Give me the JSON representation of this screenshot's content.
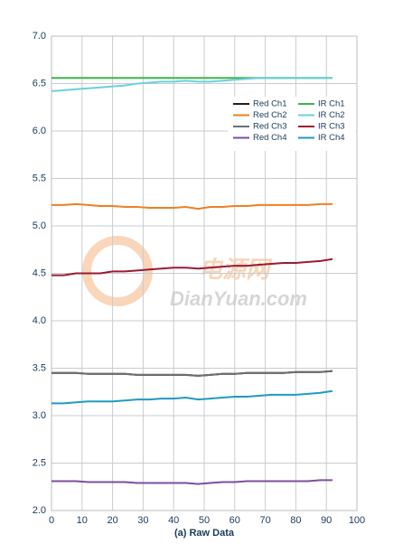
{
  "chart_data": {
    "type": "line",
    "x_label": "(a) Raw Data",
    "x": [
      0,
      4,
      8,
      12,
      16,
      20,
      24,
      28,
      32,
      36,
      40,
      44,
      48,
      52,
      56,
      60,
      64,
      68,
      72,
      76,
      80,
      84,
      88,
      92
    ],
    "xlim": [
      0,
      100
    ],
    "xticks": [
      0,
      10,
      20,
      30,
      40,
      50,
      60,
      70,
      80,
      90,
      100
    ],
    "ylim": [
      2,
      7
    ],
    "yticks": [
      {
        "value": 2,
        "label": "2.0"
      },
      2.5,
      {
        "value": 3,
        "label": "3.0"
      },
      3.5,
      {
        "value": 4,
        "label": "4.0"
      },
      4.5,
      {
        "value": 5,
        "label": "5.0"
      },
      5.5,
      {
        "value": 6,
        "label": "6.0"
      },
      6.5,
      {
        "value": 7,
        "label": "7.0"
      }
    ],
    "grid": true,
    "legend_position": "upper right",
    "series": [
      {
        "name": "Red Ch1",
        "color": "#231f20",
        "values": [
          3.45,
          3.45,
          3.45,
          3.44,
          3.44,
          3.44,
          3.44,
          3.43,
          3.43,
          3.43,
          3.43,
          3.43,
          3.42,
          3.43,
          3.44,
          3.44,
          3.45,
          3.45,
          3.45,
          3.45,
          3.46,
          3.46,
          3.46,
          3.47
        ]
      },
      {
        "name": "Red Ch2",
        "color": "#f07f22",
        "values": [
          5.22,
          5.22,
          5.23,
          5.22,
          5.21,
          5.21,
          5.2,
          5.2,
          5.19,
          5.19,
          5.19,
          5.2,
          5.18,
          5.2,
          5.2,
          5.21,
          5.21,
          5.22,
          5.22,
          5.22,
          5.22,
          5.22,
          5.23,
          5.23
        ]
      },
      {
        "name": "Red Ch3",
        "color": "#6d6e70",
        "values": [
          3.45,
          3.45,
          3.45,
          3.44,
          3.44,
          3.44,
          3.44,
          3.43,
          3.43,
          3.43,
          3.43,
          3.43,
          3.42,
          3.43,
          3.44,
          3.44,
          3.45,
          3.45,
          3.45,
          3.45,
          3.46,
          3.46,
          3.46,
          3.47
        ]
      },
      {
        "name": "Red Ch4",
        "color": "#7b4f9d",
        "values": [
          2.31,
          2.31,
          2.31,
          2.3,
          2.3,
          2.3,
          2.3,
          2.29,
          2.29,
          2.29,
          2.29,
          2.29,
          2.28,
          2.29,
          2.3,
          2.3,
          2.31,
          2.31,
          2.31,
          2.31,
          2.31,
          2.31,
          2.32,
          2.32
        ]
      },
      {
        "name": "IR Ch1",
        "color": "#3db54a",
        "values": [
          6.56,
          6.56,
          6.56,
          6.56,
          6.56,
          6.56,
          6.56,
          6.56,
          6.56,
          6.56,
          6.56,
          6.56,
          6.56,
          6.56,
          6.56,
          6.56,
          6.56,
          6.56,
          6.56,
          6.56,
          6.56,
          6.56,
          6.56,
          6.56
        ]
      },
      {
        "name": "IR Ch2",
        "color": "#6ccfe0",
        "values": [
          6.42,
          6.43,
          6.44,
          6.45,
          6.46,
          6.47,
          6.48,
          6.5,
          6.51,
          6.52,
          6.52,
          6.53,
          6.52,
          6.52,
          6.53,
          6.54,
          6.55,
          6.56,
          6.56,
          6.56,
          6.56,
          6.56,
          6.56,
          6.56
        ]
      },
      {
        "name": "IR Ch3",
        "color": "#9b1b30",
        "values": [
          4.48,
          4.48,
          4.5,
          4.5,
          4.5,
          4.52,
          4.52,
          4.53,
          4.54,
          4.55,
          4.56,
          4.56,
          4.55,
          4.56,
          4.57,
          4.58,
          4.58,
          4.59,
          4.6,
          4.61,
          4.61,
          4.62,
          4.63,
          4.65
        ]
      },
      {
        "name": "IR Ch4",
        "color": "#1f9bc1",
        "values": [
          3.13,
          3.13,
          3.14,
          3.15,
          3.15,
          3.15,
          3.16,
          3.17,
          3.17,
          3.18,
          3.18,
          3.19,
          3.17,
          3.18,
          3.19,
          3.2,
          3.2,
          3.21,
          3.22,
          3.22,
          3.22,
          3.23,
          3.24,
          3.26
        ]
      }
    ]
  },
  "watermark": {
    "chinese": "电源网",
    "site": "DianYuan.com"
  }
}
